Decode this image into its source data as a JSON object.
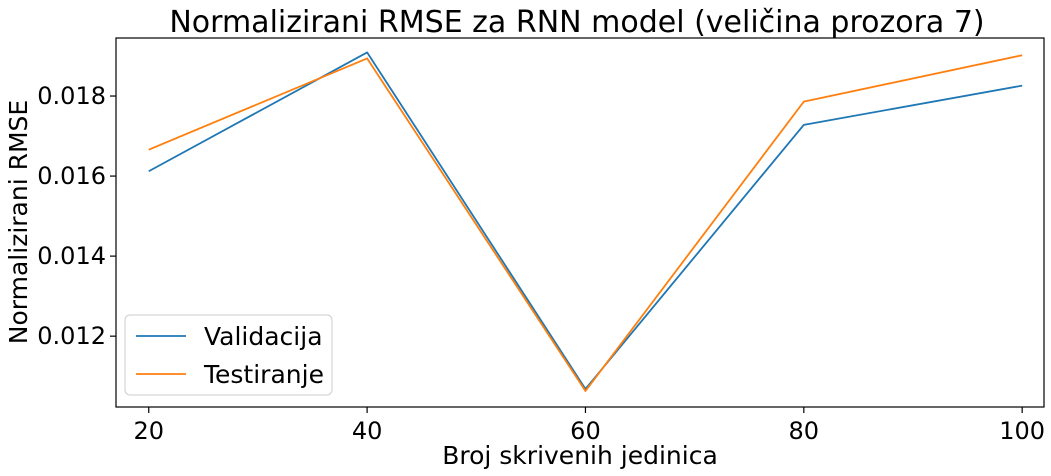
{
  "chart_data": {
    "type": "line",
    "title": "Normalizirani RMSE za RNN model (veličina prozora 7)",
    "xlabel": "Broj skrivenih jedinica",
    "ylabel": "Normalizirani RMSE",
    "x": [
      20,
      40,
      60,
      80,
      100
    ],
    "xlim": [
      17,
      102
    ],
    "ylim": [
      0.01023,
      0.01945
    ],
    "xticks": [
      20,
      40,
      60,
      80,
      100
    ],
    "yticks": [
      0.012,
      0.014,
      0.016,
      0.018
    ],
    "xtick_labels": [
      "20",
      "40",
      "60",
      "80",
      "100"
    ],
    "ytick_labels": [
      "0.012",
      "0.014",
      "0.016",
      "0.018"
    ],
    "grid": false,
    "legend_position": "lower-left",
    "series": [
      {
        "name": "Validacija",
        "color": "#1f77b4",
        "values": [
          0.01612,
          0.01909,
          0.01068,
          0.01728,
          0.01826
        ]
      },
      {
        "name": "Testiranje",
        "color": "#ff7f0e",
        "values": [
          0.01666,
          0.01894,
          0.01063,
          0.01786,
          0.01902
        ]
      }
    ]
  }
}
